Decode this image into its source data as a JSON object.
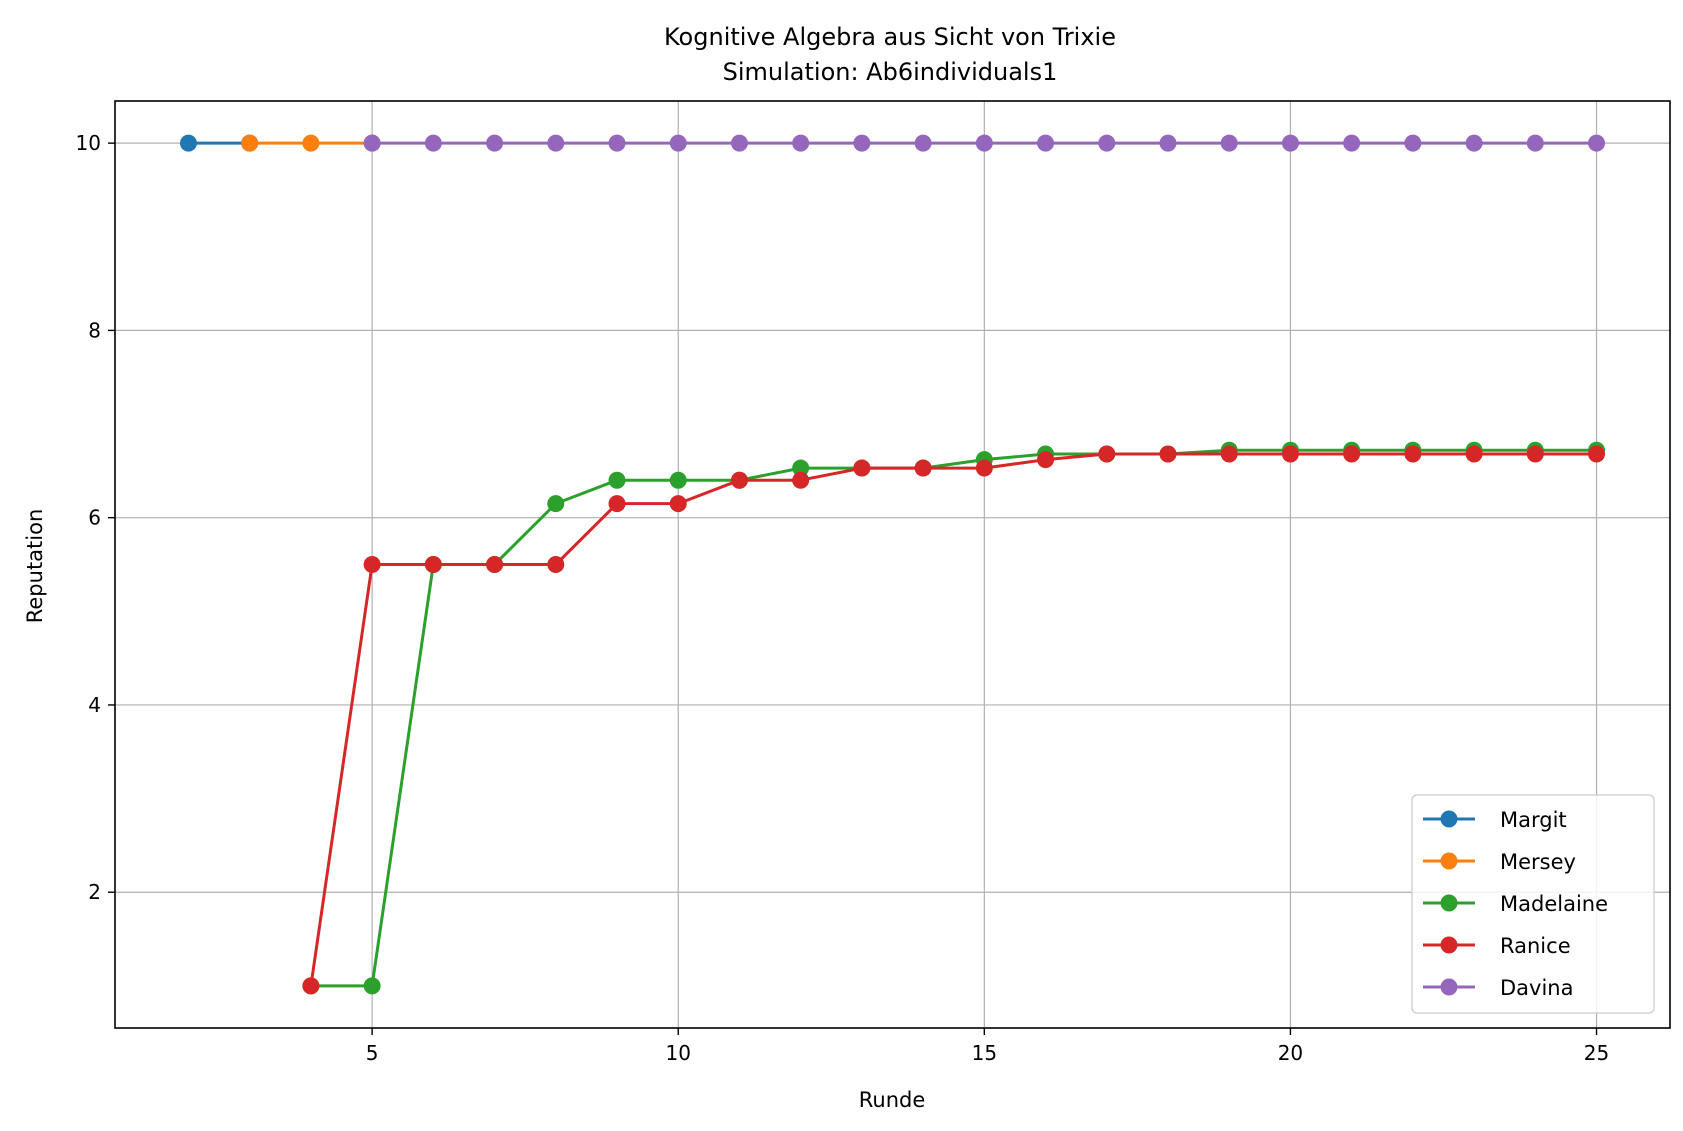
{
  "chart_data": {
    "type": "line",
    "title": "Kognitive Algebra aus Sicht von Trixie",
    "subtitle": "Simulation: Ab6individuals1",
    "xlabel": "Runde",
    "ylabel": "Reputation",
    "xlim": [
      0.8,
      26.2
    ],
    "ylim": [
      0.55,
      10.45
    ],
    "xticks": [
      5,
      10,
      15,
      20,
      25
    ],
    "yticks": [
      2,
      4,
      6,
      8,
      10
    ],
    "grid": true,
    "legend_position": "lower right",
    "series": [
      {
        "name": "Margit",
        "color": "#1f77b4",
        "x": [
          2,
          3
        ],
        "y": [
          10,
          10
        ]
      },
      {
        "name": "Mersey",
        "color": "#ff7f0e",
        "x": [
          3,
          4,
          5
        ],
        "y": [
          10,
          10,
          10
        ]
      },
      {
        "name": "Madelaine",
        "color": "#2ca02c",
        "x": [
          4,
          5,
          6,
          7,
          8,
          9,
          10,
          11,
          12,
          13,
          14,
          15,
          16,
          17,
          18,
          19,
          20,
          21,
          22,
          23,
          24,
          25
        ],
        "y": [
          1,
          1,
          5.5,
          5.5,
          6.15,
          6.4,
          6.4,
          6.4,
          6.53,
          6.53,
          6.53,
          6.62,
          6.68,
          6.68,
          6.68,
          6.72,
          6.72,
          6.72,
          6.72,
          6.72,
          6.72,
          6.72
        ]
      },
      {
        "name": "Ranice",
        "color": "#d62728",
        "x": [
          4,
          5,
          6,
          7,
          8,
          9,
          10,
          11,
          12,
          13,
          14,
          15,
          16,
          17,
          18,
          19,
          20,
          21,
          22,
          23,
          24,
          25
        ],
        "y": [
          1,
          5.5,
          5.5,
          5.5,
          5.5,
          6.15,
          6.15,
          6.4,
          6.4,
          6.53,
          6.53,
          6.53,
          6.62,
          6.68,
          6.68,
          6.68,
          6.68,
          6.68,
          6.68,
          6.68,
          6.68,
          6.68
        ]
      },
      {
        "name": "Davina",
        "color": "#9467bd",
        "x": [
          5,
          6,
          7,
          8,
          9,
          10,
          11,
          12,
          13,
          14,
          15,
          16,
          17,
          18,
          19,
          20,
          21,
          22,
          23,
          24,
          25
        ],
        "y": [
          10,
          10,
          10,
          10,
          10,
          10,
          10,
          10,
          10,
          10,
          10,
          10,
          10,
          10,
          10,
          10,
          10,
          10,
          10,
          10,
          10
        ]
      }
    ]
  }
}
